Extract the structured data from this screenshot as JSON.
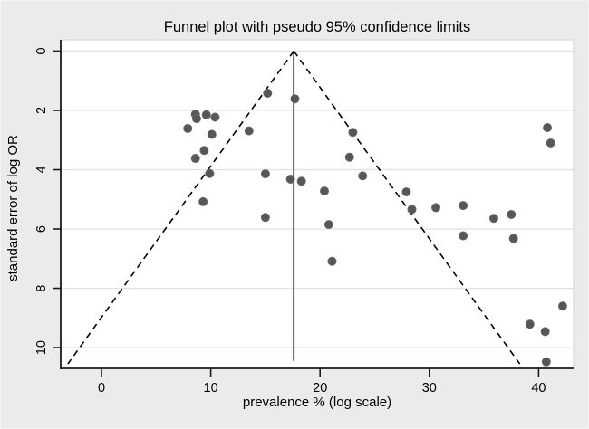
{
  "figure": {
    "background": "#ebebeb",
    "plot_background": "#ffffff"
  },
  "chart_data": {
    "type": "scatter",
    "title": "Funnel plot with pseudo 95% confidence limits",
    "xlabel": "prevalence % (log scale)",
    "ylabel": "standard error of log OR",
    "xlim": [
      -3.73,
      43.2
    ],
    "ylim": [
      -0.38,
      10.7
    ],
    "y_axis_inverted": true,
    "x_ticks": [
      0,
      10,
      20,
      30,
      40
    ],
    "y_ticks": [
      0,
      2,
      4,
      6,
      8,
      10
    ],
    "grid": "horizontal-only",
    "legend": "none",
    "funnel": {
      "center_estimate": 17.6,
      "ci_multiplier": 1.96,
      "limit_lines_se_bottom": 10.55,
      "center_line_se_bottom": 10.45,
      "limit_line_style": "dashed",
      "center_line_style": "solid",
      "line_color": "#000000"
    },
    "marker": {
      "shape": "circle",
      "radius": 4.6,
      "fill": "#575757",
      "stroke": "#6a6a6a"
    },
    "colors": {
      "grid": "#e3e3e3",
      "axis": "#1a1a1a",
      "frame": "#d9d9d9",
      "text": "#000000"
    },
    "points": [
      {
        "x": 15.2,
        "se": 1.42
      },
      {
        "x": 17.7,
        "se": 1.61
      },
      {
        "x": 8.6,
        "se": 2.13
      },
      {
        "x": 8.7,
        "se": 2.28
      },
      {
        "x": 9.6,
        "se": 2.15
      },
      {
        "x": 10.4,
        "se": 2.23
      },
      {
        "x": 7.9,
        "se": 2.61
      },
      {
        "x": 10.1,
        "se": 2.81
      },
      {
        "x": 13.5,
        "se": 2.69
      },
      {
        "x": 9.4,
        "se": 3.35
      },
      {
        "x": 8.6,
        "se": 3.62
      },
      {
        "x": 9.9,
        "se": 4.13
      },
      {
        "x": 15.0,
        "se": 4.14
      },
      {
        "x": 17.3,
        "se": 4.32
      },
      {
        "x": 18.3,
        "se": 4.39
      },
      {
        "x": 20.4,
        "se": 4.72
      },
      {
        "x": 22.7,
        "se": 3.58
      },
      {
        "x": 23.0,
        "se": 2.74
      },
      {
        "x": 23.9,
        "se": 4.21
      },
      {
        "x": 27.9,
        "se": 4.75
      },
      {
        "x": 28.4,
        "se": 5.34
      },
      {
        "x": 30.6,
        "se": 5.28
      },
      {
        "x": 33.1,
        "se": 5.21
      },
      {
        "x": 33.1,
        "se": 6.23
      },
      {
        "x": 35.9,
        "se": 5.64
      },
      {
        "x": 37.5,
        "se": 5.51
      },
      {
        "x": 37.7,
        "se": 6.32
      },
      {
        "x": 15.0,
        "se": 5.61
      },
      {
        "x": 20.8,
        "se": 5.85
      },
      {
        "x": 9.3,
        "se": 5.08
      },
      {
        "x": 21.1,
        "se": 7.09
      },
      {
        "x": 39.2,
        "se": 9.21
      },
      {
        "x": 40.6,
        "se": 9.46
      },
      {
        "x": 42.2,
        "se": 8.6
      },
      {
        "x": 40.8,
        "se": 2.58
      },
      {
        "x": 41.1,
        "se": 3.1
      },
      {
        "x": 40.7,
        "se": 10.48
      }
    ]
  }
}
